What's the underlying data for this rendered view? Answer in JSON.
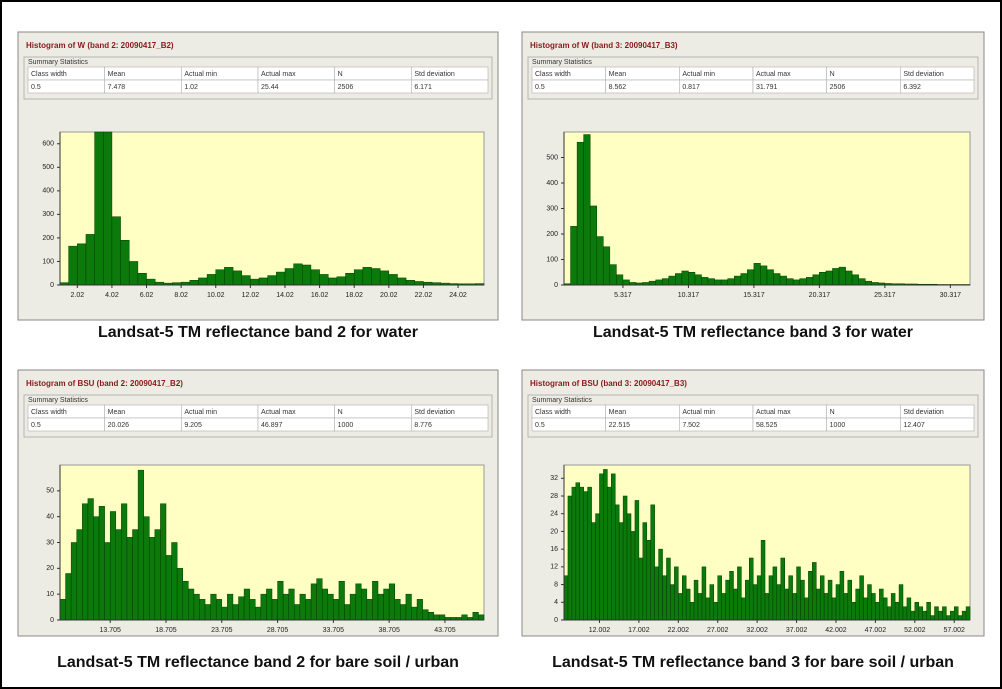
{
  "chart_data": [
    {
      "type": "histogram",
      "title": "Histogram of W (band 2: 20090417_B2)",
      "caption": "Landsat-5 TM reflectance band 2 for water",
      "summary": {
        "heading": "Summary Statistics",
        "columns": [
          "Class width",
          "Mean",
          "Actual min",
          "Actual max",
          "N",
          "Std deviation"
        ],
        "values": [
          0.5,
          7.478,
          1.02,
          25.44,
          2506,
          6.171
        ]
      },
      "bins": [
        1.02,
        1.52,
        2.02,
        2.52,
        3.02,
        3.52,
        4.02,
        4.52,
        5.02,
        5.52,
        6.02,
        6.52,
        7.02,
        7.52,
        8.02,
        8.52,
        9.02,
        9.52,
        10.02,
        10.52,
        11.02,
        11.52,
        12.02,
        12.52,
        13.02,
        13.52,
        14.02,
        14.52,
        15.02,
        15.52,
        16.02,
        16.52,
        17.02,
        17.52,
        18.02,
        18.52,
        19.02,
        19.52,
        20.02,
        20.52,
        21.02,
        21.52,
        22.02,
        22.52,
        23.02,
        23.52,
        24.02,
        24.52,
        25.02,
        25.52
      ],
      "values": [
        10,
        165,
        175,
        215,
        650,
        650,
        290,
        190,
        100,
        50,
        25,
        12,
        8,
        10,
        12,
        20,
        30,
        45,
        65,
        75,
        60,
        40,
        25,
        30,
        40,
        55,
        70,
        90,
        85,
        65,
        45,
        30,
        35,
        50,
        65,
        75,
        70,
        60,
        45,
        30,
        20,
        15,
        12,
        10,
        8,
        6,
        5,
        5,
        6
      ],
      "color": "#0b7a0b",
      "plot_background": "#ffffc4",
      "xlim": [
        1.02,
        25.52
      ],
      "xticks": [
        2.02,
        4.02,
        6.02,
        8.02,
        10.02,
        12.02,
        14.02,
        16.02,
        18.02,
        20.02,
        22.02,
        24.02
      ],
      "ylim": [
        0,
        650
      ],
      "yticks": [
        0,
        100,
        200,
        300,
        400,
        500,
        600
      ]
    },
    {
      "type": "histogram",
      "title": "Histogram of W (band 3: 20090417_B3)",
      "caption": "Landsat-5 TM reflectance band 3 for water",
      "summary": {
        "heading": "Summary Statistics",
        "columns": [
          "Class width",
          "Mean",
          "Actual min",
          "Actual max",
          "N",
          "Std deviation"
        ],
        "values": [
          0.5,
          8.562,
          0.817,
          31.791,
          2506,
          6.392
        ]
      },
      "bins": [
        0.817,
        1.317,
        1.817,
        2.317,
        2.817,
        3.317,
        3.817,
        4.317,
        4.817,
        5.317,
        5.817,
        6.317,
        6.817,
        7.317,
        7.817,
        8.317,
        8.817,
        9.317,
        9.817,
        10.317,
        10.817,
        11.317,
        11.817,
        12.317,
        12.817,
        13.317,
        13.817,
        14.317,
        14.817,
        15.317,
        15.817,
        16.317,
        16.817,
        17.317,
        17.817,
        18.317,
        18.817,
        19.317,
        19.817,
        20.317,
        20.817,
        21.317,
        21.817,
        22.317,
        22.817,
        23.317,
        23.817,
        24.317,
        24.817,
        25.317,
        25.817,
        26.317,
        26.817,
        27.317,
        27.817,
        28.317,
        28.817,
        29.317,
        29.817,
        30.317,
        30.817,
        31.317,
        31.817
      ],
      "values": [
        5,
        230,
        560,
        590,
        310,
        190,
        150,
        80,
        40,
        20,
        10,
        8,
        10,
        15,
        20,
        25,
        35,
        45,
        55,
        50,
        40,
        30,
        25,
        20,
        20,
        25,
        35,
        45,
        60,
        85,
        75,
        60,
        45,
        35,
        25,
        20,
        25,
        30,
        40,
        50,
        55,
        65,
        70,
        55,
        40,
        25,
        15,
        10,
        8,
        6,
        5,
        5,
        4,
        4,
        3,
        3,
        3,
        2,
        2,
        2,
        2,
        2
      ],
      "color": "#0b7a0b",
      "plot_background": "#ffffc4",
      "xlim": [
        0.817,
        31.817
      ],
      "xticks": [
        5.317,
        10.317,
        15.317,
        20.317,
        25.317,
        30.317
      ],
      "ylim": [
        0,
        600
      ],
      "yticks": [
        0,
        100,
        200,
        300,
        400,
        500
      ]
    },
    {
      "type": "histogram",
      "title": "Histogram of BSU (band 2: 20090417_B2)",
      "caption": "Landsat-5 TM reflectance band 2 for bare soil / urban",
      "summary": {
        "heading": "Summary Statistics",
        "columns": [
          "Class width",
          "Mean",
          "Actual min",
          "Actual max",
          "N",
          "Std deviation"
        ],
        "values": [
          0.5,
          20.026,
          9.205,
          46.897,
          1000,
          8.776
        ]
      },
      "bins": [
        9.205,
        9.705,
        10.205,
        10.705,
        11.205,
        11.705,
        12.205,
        12.705,
        13.205,
        13.705,
        14.205,
        14.705,
        15.205,
        15.705,
        16.205,
        16.705,
        17.205,
        17.705,
        18.205,
        18.705,
        19.205,
        19.705,
        20.205,
        20.705,
        21.205,
        21.705,
        22.205,
        22.705,
        23.205,
        23.705,
        24.205,
        24.705,
        25.205,
        25.705,
        26.205,
        26.705,
        27.205,
        27.705,
        28.205,
        28.705,
        29.205,
        29.705,
        30.205,
        30.705,
        31.205,
        31.705,
        32.205,
        32.705,
        33.205,
        33.705,
        34.205,
        34.705,
        35.205,
        35.705,
        36.205,
        36.705,
        37.205,
        37.705,
        38.205,
        38.705,
        39.205,
        39.705,
        40.205,
        40.705,
        41.205,
        41.705,
        42.205,
        42.705,
        43.205,
        43.705,
        44.205,
        44.705,
        45.205,
        45.705,
        46.205,
        46.705,
        47.205
      ],
      "values": [
        8,
        18,
        30,
        35,
        45,
        47,
        40,
        44,
        30,
        42,
        35,
        45,
        32,
        35,
        58,
        40,
        32,
        35,
        45,
        25,
        30,
        20,
        15,
        12,
        10,
        8,
        6,
        10,
        8,
        5,
        10,
        6,
        9,
        12,
        8,
        5,
        10,
        12,
        8,
        15,
        10,
        12,
        6,
        10,
        8,
        14,
        16,
        12,
        10,
        8,
        15,
        6,
        10,
        14,
        12,
        8,
        15,
        10,
        12,
        14,
        8,
        6,
        10,
        5,
        8,
        4,
        3,
        2,
        2,
        1,
        1,
        1,
        2,
        1,
        3,
        2
      ],
      "color": "#0b7a0b",
      "plot_background": "#ffffc4",
      "xlim": [
        9.205,
        47.205
      ],
      "xticks": [
        13.705,
        18.705,
        23.705,
        28.705,
        33.705,
        38.705,
        43.705
      ],
      "ylim": [
        0,
        60
      ],
      "yticks": [
        0,
        10,
        20,
        30,
        40,
        50
      ]
    },
    {
      "type": "histogram",
      "title": "Histogram of BSU (band 3: 20090417_B3)",
      "caption": "Landsat-5 TM reflectance band 3 for bare soil / urban",
      "summary": {
        "heading": "Summary Statistics",
        "columns": [
          "Class width",
          "Mean",
          "Actual min",
          "Actual max",
          "N",
          "Std deviation"
        ],
        "values": [
          0.5,
          22.515,
          7.502,
          58.525,
          1000,
          12.407
        ]
      },
      "bins": [
        7.502,
        8.002,
        8.502,
        9.002,
        9.502,
        10.002,
        10.502,
        11.002,
        11.502,
        12.002,
        12.502,
        13.002,
        13.502,
        14.002,
        14.502,
        15.002,
        15.502,
        16.002,
        16.502,
        17.002,
        17.502,
        18.002,
        18.502,
        19.002,
        19.502,
        20.002,
        20.502,
        21.002,
        21.502,
        22.002,
        22.502,
        23.002,
        23.502,
        24.002,
        24.502,
        25.002,
        25.502,
        26.002,
        26.502,
        27.002,
        27.502,
        28.002,
        28.502,
        29.002,
        29.502,
        30.002,
        30.502,
        31.002,
        31.502,
        32.002,
        32.502,
        33.002,
        33.502,
        34.002,
        34.502,
        35.002,
        35.502,
        36.002,
        36.502,
        37.002,
        37.502,
        38.002,
        38.502,
        39.002,
        39.502,
        40.002,
        40.502,
        41.002,
        41.502,
        42.002,
        42.502,
        43.002,
        43.502,
        44.002,
        44.502,
        45.002,
        45.502,
        46.002,
        46.502,
        47.002,
        47.502,
        48.002,
        48.502,
        49.002,
        49.502,
        50.002,
        50.502,
        51.002,
        51.502,
        52.002,
        52.502,
        53.002,
        53.502,
        54.002,
        54.502,
        55.002,
        55.502,
        56.002,
        56.502,
        57.002,
        57.502,
        58.002,
        58.502,
        59.002
      ],
      "values": [
        10,
        28,
        30,
        31,
        30,
        29,
        30,
        22,
        24,
        33,
        34,
        30,
        33,
        26,
        22,
        28,
        24,
        20,
        27,
        14,
        22,
        18,
        26,
        12,
        16,
        10,
        14,
        8,
        12,
        6,
        10,
        7,
        4,
        9,
        6,
        12,
        5,
        8,
        4,
        10,
        6,
        9,
        11,
        7,
        12,
        5,
        9,
        14,
        8,
        10,
        18,
        6,
        10,
        12,
        8,
        14,
        7,
        10,
        6,
        12,
        9,
        5,
        11,
        13,
        7,
        10,
        6,
        9,
        5,
        8,
        11,
        6,
        9,
        4,
        7,
        10,
        5,
        8,
        6,
        4,
        7,
        5,
        3,
        6,
        4,
        8,
        3,
        5,
        2,
        4,
        3,
        2,
        4,
        1,
        3,
        2,
        3,
        1,
        2,
        3,
        1,
        2,
        3
      ],
      "color": "#0b7a0b",
      "plot_background": "#ffffc4",
      "xlim": [
        7.502,
        59.002
      ],
      "xticks": [
        12.002,
        17.002,
        22.002,
        27.002,
        32.002,
        37.002,
        42.002,
        47.002,
        52.002,
        57.002
      ],
      "ylim": [
        0,
        35
      ],
      "yticks": [
        0,
        4,
        8,
        12,
        16,
        20,
        24,
        28,
        32
      ]
    }
  ]
}
